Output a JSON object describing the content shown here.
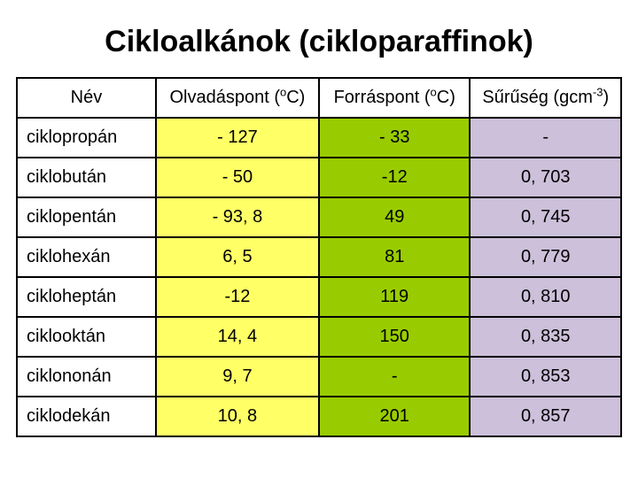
{
  "title": "Cikloalkánok (cikloparaffinok)",
  "columns": {
    "name": "Név",
    "melt_pre": "Olvadáspont (",
    "melt_sup": "o",
    "melt_post": "C)",
    "boil_pre": "Forráspont (",
    "boil_sup": "o",
    "boil_post": "C)",
    "dens_pre": "Sűrűség (gcm",
    "dens_sup": "-3",
    "dens_post": ")"
  },
  "colors": {
    "name_bg": "#ffffff",
    "melt_bg": "#ffff66",
    "boil_bg": "#99cc00",
    "dens_bg": "#ccc0da",
    "border": "#000000",
    "text": "#000000"
  },
  "rows": [
    {
      "name": "ciklopropán",
      "melt": "- 127",
      "boil": "- 33",
      "dens": "-"
    },
    {
      "name": "ciklobután",
      "melt": "- 50",
      "boil": "-12",
      "dens": "0, 703"
    },
    {
      "name": "ciklopentán",
      "melt": "- 93, 8",
      "boil": "49",
      "dens": "0, 745"
    },
    {
      "name": "ciklohexán",
      "melt": "6, 5",
      "boil": "81",
      "dens": "0, 779"
    },
    {
      "name": "cikloheptán",
      "melt": "-12",
      "boil": "119",
      "dens": "0, 810"
    },
    {
      "name": "ciklooktán",
      "melt": "14, 4",
      "boil": "150",
      "dens": "0, 835"
    },
    {
      "name": "ciklononán",
      "melt": "9, 7",
      "boil": "-",
      "dens": "0, 853"
    },
    {
      "name": "ciklodekán",
      "melt": "10, 8",
      "boil": "201",
      "dens": "0, 857"
    }
  ]
}
